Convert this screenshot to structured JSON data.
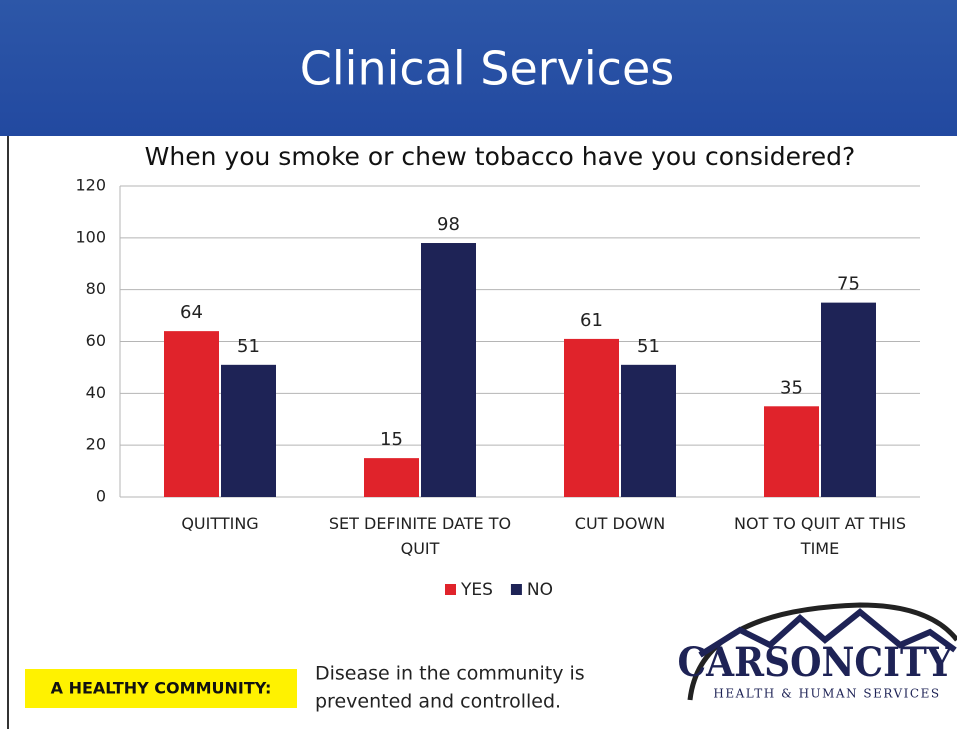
{
  "header": {
    "title": "Clinical Services"
  },
  "chart_data": {
    "type": "bar",
    "title": "When you smoke or chew tobacco have you considered?",
    "categories": [
      "QUITTING",
      "SET DEFINITE DATE TO QUIT",
      "CUT DOWN",
      "NOT TO QUIT AT THIS TIME"
    ],
    "series": [
      {
        "name": "YES",
        "color": "#e0232b",
        "values": [
          64,
          15,
          61,
          35
        ]
      },
      {
        "name": "NO",
        "color": "#1e2356",
        "values": [
          51,
          98,
          51,
          75
        ]
      }
    ],
    "ylim": [
      0,
      120
    ],
    "yticks": [
      0,
      20,
      40,
      60,
      80,
      100,
      120
    ],
    "grid": true,
    "legend": "bottom"
  },
  "footer": {
    "badge": "A HEALTHY COMMUNITY:",
    "text": [
      "Disease in the community is",
      "prevented and controlled."
    ],
    "logo": {
      "name": "CARSONCITY",
      "tagline": "HEALTH & HUMAN SERVICES"
    }
  }
}
